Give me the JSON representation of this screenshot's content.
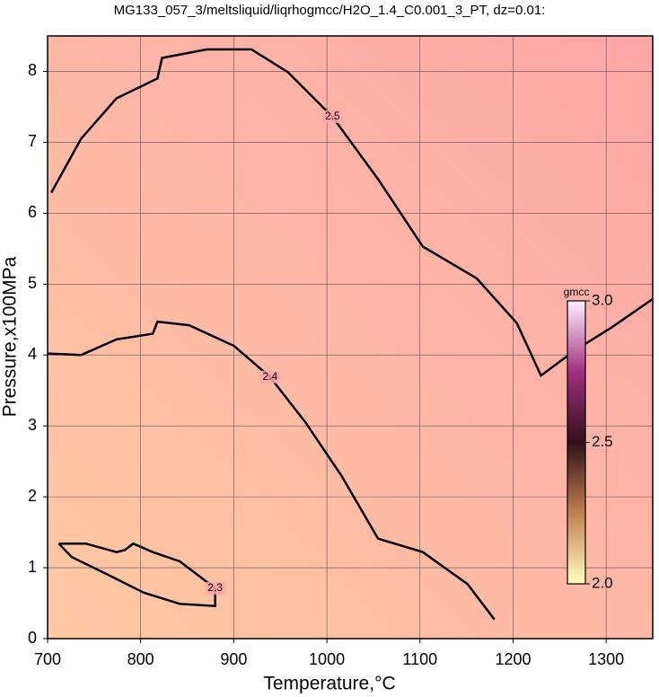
{
  "chart_data": {
    "type": "contour",
    "title": "MG133_057_3/meltsliquid/liqrhogmcc/H2O_1.4_C0.001_3_PT, dz=0.01:",
    "x_label": "Temperature,°C",
    "y_label": "Pressure,x100MPa",
    "xlim": [
      700,
      1350
    ],
    "ylim": [
      0,
      8.5
    ],
    "xticks": [
      700,
      800,
      900,
      1000,
      1100,
      1200,
      1300
    ],
    "yticks": [
      0,
      1,
      2,
      3,
      4,
      5,
      6,
      7,
      8
    ],
    "grid": true,
    "background_colors": [
      "#ffc9a3",
      "#ffa6a8"
    ],
    "contours": [
      {
        "level": 2.5,
        "color": "#000000",
        "x": [
          704,
          736,
          774,
          818,
          823,
          871,
          919,
          958,
          1006,
          1055,
          1103,
          1161,
          1204,
          1230,
          1267,
          1306,
          1350
        ],
        "y": [
          6.29,
          7.05,
          7.62,
          7.9,
          8.19,
          8.31,
          8.31,
          7.99,
          7.36,
          6.48,
          5.53,
          5.08,
          4.45,
          3.71,
          4.07,
          4.39,
          4.79
        ]
      },
      {
        "level": 2.4,
        "color": "#000000",
        "x": [
          700,
          736,
          774,
          813,
          818,
          852,
          900,
          939,
          977,
          1016,
          1055,
          1103,
          1151,
          1180
        ],
        "y": [
          4.02,
          4.0,
          4.22,
          4.3,
          4.47,
          4.42,
          4.13,
          3.69,
          3.05,
          2.29,
          1.41,
          1.22,
          0.77,
          0.27
        ]
      },
      {
        "level": 2.3,
        "color": "#000000",
        "x": [
          712,
          741,
          774,
          783,
          792,
          813,
          842,
          880,
          880,
          842,
          803,
          765,
          726,
          712
        ],
        "y": [
          1.34,
          1.34,
          1.22,
          1.25,
          1.34,
          1.22,
          1.09,
          0.71,
          0.46,
          0.49,
          0.65,
          0.9,
          1.15,
          1.34
        ]
      }
    ],
    "colorbar": {
      "label": "gmcc",
      "lim": [
        2.0,
        3.0
      ],
      "ticks": [
        {
          "value": 2.0,
          "label": "2.0"
        },
        2.5,
        {
          "value": 3.0,
          "label": "3.0"
        }
      ],
      "colors": [
        "#ffffc0",
        "#c08050",
        "#301018",
        "#a03080",
        "#fff0ff"
      ]
    }
  }
}
